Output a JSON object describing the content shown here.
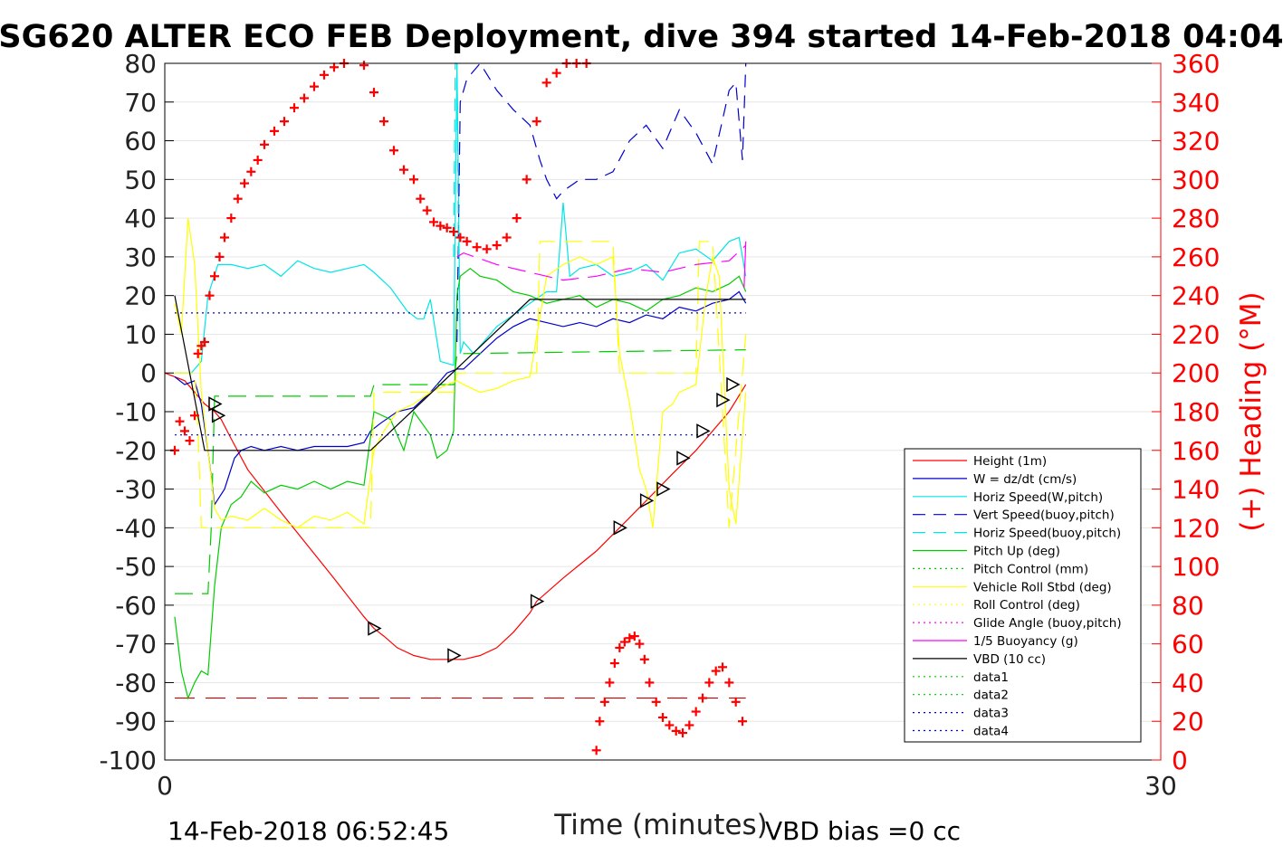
{
  "chart_data": {
    "type": "line",
    "title": "SG620 ALTER ECO FEB Deployment, dive 394 started 14-Feb-2018 04:04",
    "xlabel": "Time (minutes)",
    "ylabel_right": "(+) Heading (°M)",
    "xlim": [
      0,
      30
    ],
    "ylim_left": [
      -100,
      80
    ],
    "ylim_right": [
      0,
      360
    ],
    "x_ticks": [
      "0",
      "30"
    ],
    "y_ticks_left": [
      "80",
      "70",
      "60",
      "50",
      "40",
      "30",
      "20",
      "10",
      "0",
      "-10",
      "-20",
      "-30",
      "-40",
      "-50",
      "-60",
      "-70",
      "-80",
      "-90",
      "-100"
    ],
    "y_ticks_right": [
      "360",
      "340",
      "320",
      "300",
      "280",
      "260",
      "240",
      "220",
      "200",
      "180",
      "160",
      "140",
      "120",
      "100",
      "80",
      "60",
      "40",
      "20",
      "0"
    ],
    "grid": true,
    "legend_position": "bottom-right",
    "footer_left": "14-Feb-2018 06:52:45",
    "footer_right": "VBD bias =0 cc",
    "colors": {
      "axis": "#000000",
      "right_axis": "#ff0000",
      "grid": "#e6e6e6"
    },
    "series": [
      {
        "name": "Height (1m)",
        "color": "#ff0000",
        "dash": "",
        "axis": "left",
        "x": [
          0,
          0.6,
          1.2,
          1.5,
          1.7,
          2.0,
          2.5,
          3.5,
          5,
          6,
          6.3,
          6.6,
          7,
          7.5,
          8,
          8.5,
          9,
          9.5,
          10,
          10.5,
          11,
          11.2,
          12,
          13,
          13.7,
          14.5,
          15.3,
          16,
          17,
          17.5
        ],
        "y": [
          0,
          -2,
          -8,
          -10,
          -12,
          -17,
          -25,
          -36,
          -52,
          -63,
          -66,
          -68,
          -71,
          -73,
          -74,
          -74,
          -74,
          -73,
          -71,
          -67,
          -62,
          -59,
          -53,
          -46,
          -40,
          -33,
          -26,
          -20,
          -10,
          -3
        ]
      },
      {
        "name": "W = dz/dt (cm/s)",
        "color": "#0000cc",
        "dash": "",
        "axis": "left",
        "x": [
          0.3,
          0.6,
          0.9,
          1.1,
          1.3,
          1.5,
          1.8,
          2.1,
          2.3,
          2.6,
          3,
          3.5,
          4,
          4.5,
          5,
          5.5,
          6,
          6.2,
          6.5,
          7,
          7.5,
          8,
          8.5,
          8.8,
          9,
          9.5,
          10,
          10.5,
          11,
          11.5,
          12,
          12.5,
          13,
          13.5,
          14,
          14.5,
          15,
          15.5,
          16,
          16.5,
          17,
          17.3,
          17.5
        ],
        "y": [
          -1,
          -3,
          -2,
          -8,
          -20,
          -34,
          -30,
          -22,
          -20,
          -19,
          -20,
          -19,
          -20,
          -19,
          -19,
          -19,
          -18,
          -15,
          -13,
          -10,
          -9,
          -5,
          0,
          1,
          1,
          5,
          9,
          12,
          14,
          13,
          12,
          13,
          12,
          14,
          13,
          15,
          14,
          17,
          16,
          18,
          19,
          21,
          18
        ]
      },
      {
        "name": "Horiz Speed(W,pitch)",
        "color": "#00e5e5",
        "dash": "",
        "axis": "left",
        "x": [
          0.3,
          0.8,
          1.1,
          1.3,
          1.6,
          2.0,
          2.5,
          3,
          3.5,
          4,
          4.5,
          5,
          5.5,
          6,
          6.3,
          6.8,
          7.3,
          7.6,
          7.8,
          8,
          8.3,
          8.7,
          8.8,
          8.9,
          9,
          9.3,
          10,
          10.5,
          11,
          11.5,
          11.8,
          12.0,
          12.2,
          12.5,
          13,
          13.5,
          14,
          14.5,
          15,
          15.5,
          16,
          16.5,
          17,
          17.3,
          17.5
        ],
        "y": [
          0,
          0,
          3,
          20,
          28,
          28,
          27,
          28,
          25,
          29,
          27,
          26,
          27,
          28,
          26,
          22,
          16,
          14,
          14,
          19,
          3,
          2,
          80,
          5,
          8,
          5,
          12,
          15,
          18,
          21,
          21,
          44,
          25,
          27,
          28,
          25,
          26,
          28,
          24,
          31,
          32,
          29,
          34,
          35,
          25
        ]
      },
      {
        "name": "Vert Speed(buoy,pitch)",
        "color": "#0000cc",
        "dash": "14,9",
        "axis": "left",
        "x": [
          8.8,
          8.9,
          9.1,
          9.5,
          10,
          10.5,
          11,
          11.3,
          11.5,
          11.8,
          12.0,
          12.5,
          13,
          13.5,
          14,
          14.5,
          15,
          15.5,
          16,
          16.5,
          17,
          17.2,
          17.4,
          17.5
        ],
        "y": [
          8,
          70,
          76,
          80,
          73,
          68,
          64,
          55,
          50,
          45,
          47,
          50,
          50,
          52,
          60,
          64,
          58,
          68,
          62,
          54,
          73,
          75,
          55,
          80
        ]
      },
      {
        "name": "Horiz Speed(buoy,pitch)",
        "color": "#00e5e5",
        "dash": "14,9",
        "axis": "left",
        "x": [
          8.7,
          8.75,
          8.8,
          8.85
        ],
        "y": [
          30,
          80,
          80,
          30
        ]
      },
      {
        "name": "Pitch Up (deg)",
        "color": "#00cc00",
        "dash": "",
        "axis": "left",
        "x": [
          0.3,
          0.5,
          0.7,
          0.9,
          1.1,
          1.3,
          1.5,
          1.7,
          2.0,
          2.3,
          2.6,
          3.0,
          3.5,
          4,
          4.5,
          5,
          5.5,
          6,
          6.3,
          6.8,
          7.2,
          7.5,
          8,
          8.2,
          8.5,
          8.7,
          8.8,
          8.9,
          9.2,
          9.5,
          10,
          10.5,
          11,
          11.5,
          12,
          12.5,
          13,
          13.5,
          14,
          14.5,
          15,
          15.5,
          16,
          16.5,
          17,
          17.3,
          17.5
        ],
        "y": [
          -63,
          -77,
          -84,
          -80,
          -77,
          -78,
          -55,
          -40,
          -34,
          -32,
          -28,
          -31,
          -29,
          -30,
          -28,
          -30,
          -28,
          -29,
          -10,
          -12,
          -20,
          -10,
          -16,
          -22,
          -20,
          -15,
          20,
          25,
          27,
          25,
          24,
          21,
          20,
          18,
          19,
          20,
          17,
          19,
          18,
          16,
          19,
          20,
          22,
          21,
          23,
          25,
          21
        ]
      },
      {
        "name": "Pitch Control (mm)",
        "color": "#00cc00",
        "dash": "20,10",
        "axis": "left",
        "x": [
          0.3,
          1.3,
          1.4,
          1.5,
          6.2,
          6.3,
          8.7,
          8.8,
          9,
          17.5
        ],
        "y": [
          -57,
          -57,
          -40,
          -6,
          -6,
          -3,
          -3,
          5,
          5,
          6
        ]
      },
      {
        "name": "Vehicle Roll Stbd (deg)",
        "color": "#ffff00",
        "dash": "",
        "axis": "left",
        "x": [
          0.3,
          0.5,
          0.7,
          0.9,
          1.1,
          1.3,
          1.5,
          1.7,
          2,
          2.5,
          3,
          3.5,
          4,
          4.5,
          5,
          5.5,
          6,
          6.3,
          6.6,
          7,
          7.5,
          8,
          8.5,
          8.8,
          9,
          9.5,
          10,
          10.5,
          11,
          11.5,
          12,
          12.5,
          13,
          13.5,
          13.7,
          14,
          14.3,
          14.5,
          14.7,
          15,
          15.3,
          15.5,
          16,
          16.3,
          16.5,
          16.7,
          17,
          17.2,
          17.5
        ],
        "y": [
          18,
          10,
          40,
          28,
          -5,
          -20,
          -35,
          -38,
          -37,
          -38,
          -35,
          -38,
          -40,
          -37,
          -38,
          -36,
          -39,
          -20,
          -15,
          -10,
          -8,
          -5,
          -3,
          -2,
          -3,
          -5,
          -4,
          -2,
          -1,
          25,
          28,
          30,
          28,
          30,
          5,
          -8,
          -25,
          -30,
          -40,
          -10,
          -8,
          -5,
          -3,
          20,
          30,
          25,
          -30,
          -39,
          -5
        ]
      },
      {
        "name": "Roll Control (deg)",
        "color": "#ffff00",
        "dash": "20,10",
        "axis": "left",
        "x": [
          0.3,
          0.9,
          1.0,
          1.1,
          1.3,
          1.5,
          6.2,
          6.3,
          8.7,
          8.8,
          11.2,
          11.3,
          13.5,
          13.7,
          14.3,
          14.5,
          16,
          16.1,
          16.5,
          16.6,
          17,
          17.5
        ],
        "y": [
          0,
          0,
          -15,
          -40,
          -40,
          -40,
          -40,
          -5,
          -5,
          0,
          0,
          34,
          34,
          0,
          0,
          0,
          0,
          34,
          34,
          20,
          -40,
          10
        ]
      },
      {
        "name": "Glide Angle (buoy,pitch)",
        "color": "#ff00ff",
        "dash": "20,10",
        "axis": "left",
        "x": [
          8.8,
          9.0,
          10,
          11,
          12,
          13,
          14,
          15,
          16,
          17,
          17.5
        ],
        "y": [
          30,
          31,
          28,
          26,
          24,
          25,
          27,
          26,
          28,
          29,
          33
        ]
      },
      {
        "name": "1/5 Buoyancy (g)",
        "color": "#ff00ff",
        "dash": "",
        "axis": "left",
        "x": [
          17.45,
          17.5
        ],
        "y": [
          22,
          34
        ]
      },
      {
        "name": "VBD (10 cc)",
        "color": "#000000",
        "dash": "",
        "axis": "left",
        "x": [
          0.3,
          1.2,
          6.2,
          11.0,
          17.5
        ],
        "y": [
          20,
          -20,
          -20,
          19,
          19
        ]
      },
      {
        "name": "data1",
        "color": "#00cc00",
        "dash": "2,4",
        "axis": "left",
        "x": [],
        "y": []
      },
      {
        "name": "data2",
        "color": "#00cc00",
        "dash": "2,4",
        "axis": "left",
        "x": [],
        "y": []
      },
      {
        "name": "data3",
        "color": "#0000cc",
        "dash": "2,4",
        "axis": "left",
        "x": [
          0.3,
          17.5
        ],
        "y": [
          15.5,
          15.5
        ]
      },
      {
        "name": "data4",
        "color": "#0000cc",
        "dash": "2,4",
        "axis": "left",
        "x": [
          0.3,
          17.5
        ],
        "y": [
          -16,
          -16
        ]
      }
    ],
    "reference_line": {
      "color": "#cc0000",
      "dash": "22,12",
      "y": -84,
      "x": [
        0.3,
        17.5
      ]
    },
    "heading_markers": {
      "name": "Heading",
      "color": "#ff0000",
      "marker": "+",
      "axis": "right",
      "x": [
        0.3,
        0.45,
        0.6,
        0.75,
        0.9,
        1.0,
        1.1,
        1.2,
        1.35,
        1.5,
        1.65,
        1.8,
        2.0,
        2.2,
        2.4,
        2.6,
        2.8,
        3.0,
        3.3,
        3.6,
        3.9,
        4.2,
        4.5,
        4.8,
        5.1,
        5.4,
        5.7,
        6.0,
        6.3,
        6.6,
        6.9,
        7.2,
        7.5,
        7.7,
        7.9,
        8.1,
        8.3,
        8.5,
        8.7,
        8.9,
        9.1,
        9.4,
        9.7,
        10.0,
        10.3,
        10.6,
        10.9,
        11.2,
        11.5,
        11.8,
        12.1,
        12.4,
        12.7,
        13.0,
        13.1,
        13.25,
        13.4,
        13.55,
        13.7,
        13.85,
        14.0,
        14.15,
        14.3,
        14.45,
        14.6,
        14.8,
        15.0,
        15.2,
        15.4,
        15.6,
        15.8,
        16.0,
        16.2,
        16.4,
        16.6,
        16.8,
        17.0,
        17.2,
        17.4
      ],
      "y": [
        160,
        175,
        170,
        165,
        178,
        210,
        214,
        216,
        240,
        250,
        260,
        270,
        280,
        290,
        298,
        304,
        310,
        318,
        325,
        330,
        337,
        342,
        348,
        354,
        358,
        360,
        361,
        359,
        345,
        330,
        315,
        305,
        300,
        290,
        284,
        278,
        276,
        275,
        273,
        270,
        268,
        265,
        264,
        266,
        270,
        280,
        300,
        330,
        350,
        355,
        360,
        360,
        360,
        5,
        20,
        30,
        40,
        50,
        58,
        61,
        63,
        64,
        60,
        52,
        40,
        30,
        22,
        18,
        15,
        14,
        18,
        25,
        32,
        40,
        46,
        48,
        40,
        30,
        20
      ]
    },
    "triangle_markers": {
      "color": "#000000",
      "x": [
        1.5,
        1.6,
        6.3,
        8.7,
        11.2,
        13.7,
        14.5,
        15.0,
        15.6,
        16.2,
        16.8,
        17.1
      ],
      "y": [
        -8,
        -11,
        -66,
        -73,
        -59,
        -40,
        -33,
        -30,
        -22,
        -15,
        -7,
        -3
      ]
    }
  }
}
